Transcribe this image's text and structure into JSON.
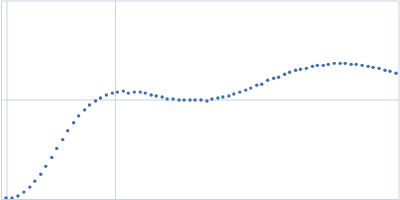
{
  "chart_data": {
    "type": "scatter",
    "x": [
      -0.0009,
      0.0046,
      0.0101,
      0.0156,
      0.0211,
      0.0257,
      0.0312,
      0.0358,
      0.0413,
      0.0459,
      0.0514,
      0.056,
      0.0615,
      0.0661,
      0.0716,
      0.0761,
      0.0817,
      0.0862,
      0.0917,
      0.0972,
      0.1018,
      0.1073,
      0.1119,
      0.1174,
      0.1229,
      0.1275,
      0.133,
      0.1376,
      0.1431,
      0.1477,
      0.1532,
      0.1587,
      0.1633,
      0.1688,
      0.1734,
      0.1789,
      0.1844,
      0.189,
      0.1945,
      0.1991,
      0.2046,
      0.2092,
      0.2147,
      0.2202,
      0.2248,
      0.2303,
      0.2349,
      0.2404,
      0.2459,
      0.2505,
      0.256,
      0.2606,
      0.2661,
      0.2706,
      0.2761,
      0.2817,
      0.2862,
      0.2917,
      0.2963,
      0.3018,
      0.3073,
      0.3119,
      0.3174,
      0.322,
      0.3275,
      0.333,
      0.3376,
      0.3431,
      0.3486,
      0.3532,
      0.3587
    ],
    "values": [
      0.01,
      0.01,
      0.03,
      0.07,
      0.12,
      0.18,
      0.25,
      0.33,
      0.42,
      0.51,
      0.6,
      0.69,
      0.77,
      0.84,
      0.9,
      0.95,
      0.99,
      1.02,
      1.05,
      1.07,
      1.08,
      1.09,
      1.07,
      1.08,
      1.08,
      1.07,
      1.05,
      1.04,
      1.03,
      1.01,
      1.01,
      1.0,
      1.0,
      1.0,
      1.0,
      1.0,
      0.99,
      1.01,
      1.02,
      1.03,
      1.04,
      1.06,
      1.08,
      1.1,
      1.12,
      1.15,
      1.16,
      1.2,
      1.22,
      1.23,
      1.26,
      1.28,
      1.3,
      1.31,
      1.32,
      1.34,
      1.35,
      1.35,
      1.36,
      1.37,
      1.37,
      1.37,
      1.36,
      1.36,
      1.35,
      1.34,
      1.33,
      1.32,
      1.3,
      1.29,
      1.27
    ],
    "color": "#3a6fb5",
    "marker": "circle",
    "xlim": [
      -0.0055,
      0.3615
    ],
    "ylim": [
      0,
      2
    ],
    "xticks": [
      0,
      0.1
    ],
    "yticks": [
      1
    ],
    "grid": true,
    "tick_labels": false
  }
}
